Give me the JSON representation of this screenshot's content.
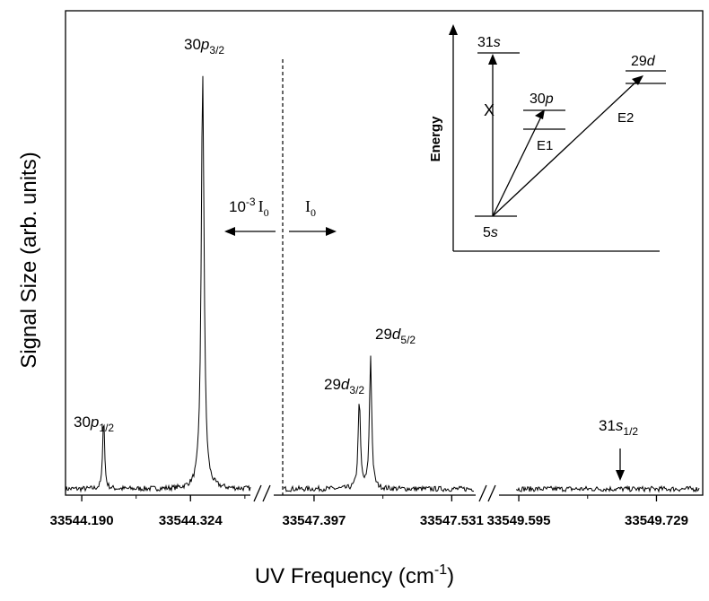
{
  "chart_data": {
    "type": "line",
    "xlabel": "UV Frequency (cm",
    "xlabel_sup": "-1",
    "xlabel_end": ")",
    "ylabel": "Signal Size (arb. units)",
    "broken_axis": true,
    "segments": [
      {
        "xlim": [
          33544.17,
          33544.4
        ],
        "ticks": [
          {
            "value": 33544.19,
            "label": "33544.190"
          },
          {
            "value": 33544.324,
            "label": "33544.324"
          }
        ],
        "peaks": [
          {
            "center": 33544.217,
            "height": 0.174,
            "width": 0.0013
          },
          {
            "center": 33544.339,
            "height": 0.955,
            "width": 0.0021
          }
        ]
      },
      {
        "xlim": [
          33547.356,
          33547.556
        ],
        "ticks": [
          {
            "value": 33547.397,
            "label": "33547.397"
          },
          {
            "value": 33547.531,
            "label": "33547.531"
          }
        ],
        "peaks": [
          {
            "center": 33547.441,
            "height": 0.205,
            "width": 0.0013
          },
          {
            "center": 33547.452,
            "height": 0.305,
            "width": 0.0013
          }
        ]
      },
      {
        "xlim": [
          33549.574,
          33549.774
        ],
        "ticks": [
          {
            "value": 33549.595,
            "label": "33549.595"
          },
          {
            "value": 33549.729,
            "label": "33549.729"
          }
        ],
        "peaks": []
      }
    ],
    "ylim": [
      0,
      1.02
    ],
    "divider": {
      "x": 33547.356,
      "left_label": "10",
      "left_sup": "-3",
      "left_sym": "I",
      "left_sub": "0",
      "right_label": "I",
      "right_sub": "0"
    },
    "annotations": [
      {
        "base": "30",
        "italic": "p",
        "sub": "1/2",
        "x": 33544.217,
        "y": 0.2
      },
      {
        "base": "30",
        "italic": "p",
        "sub": "3/2",
        "x": 33544.339,
        "y": 0.98
      },
      {
        "base": "29",
        "italic": "d",
        "sub": "3/2",
        "x": 33547.441,
        "y": 0.23
      },
      {
        "base": "29",
        "italic": "d",
        "sub": "5/2",
        "x": 33547.452,
        "y": 0.33
      },
      {
        "base": "31",
        "italic": "s",
        "sub": "1/2",
        "x": 33549.7,
        "y": 0.14
      }
    ],
    "arrow_31s": {
      "x": 33549.7,
      "y_top": 0.11,
      "y_bottom": 0.02
    }
  },
  "inset": {
    "ylabel": "Energy",
    "levels": [
      {
        "base": "5",
        "italic": "s"
      },
      {
        "base": "30",
        "italic": "p"
      },
      {
        "base": "29",
        "italic": "d"
      },
      {
        "base": "31",
        "italic": "s"
      }
    ],
    "transitions": [
      "E1",
      "E2"
    ],
    "forbidden_mark": "X"
  }
}
